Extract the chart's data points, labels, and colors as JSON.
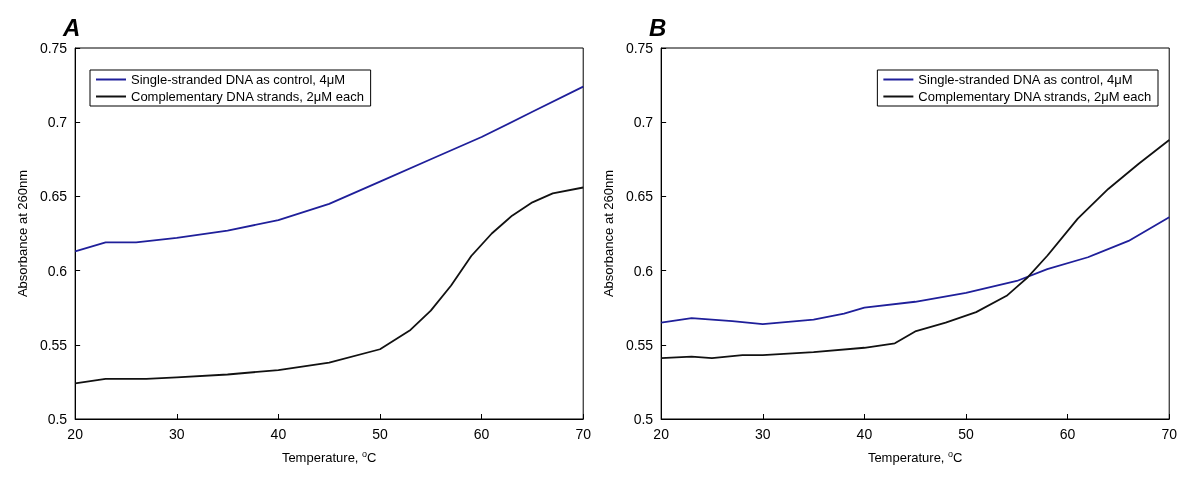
{
  "chart_data": [
    {
      "type": "line",
      "title": "A",
      "xlabel": "Temperature, $^{o}$C",
      "ylabel": "Absorbance at 260nm",
      "xlim": [
        20,
        70
      ],
      "xticks": [
        20,
        30,
        40,
        50,
        60,
        70
      ],
      "ylim": [
        0.5,
        0.75
      ],
      "yticks": [
        0.5,
        0.55,
        0.6,
        0.65,
        0.7,
        0.75
      ],
      "grid": false,
      "legend": "top left",
      "marker": "none",
      "line_style": "solid",
      "series": [
        {
          "name": "Single-stranded DNA as control, 4μM",
          "color": "#1f1f9a",
          "x": [
            20,
            23,
            26,
            30,
            35,
            40,
            45,
            50,
            55,
            60,
            65,
            70
          ],
          "values": [
            0.613,
            0.619,
            0.619,
            0.622,
            0.627,
            0.634,
            0.645,
            0.66,
            0.675,
            0.69,
            0.707,
            0.724
          ]
        },
        {
          "name": "Complementary DNA strands, 2μM each",
          "color": "#111111",
          "x": [
            20,
            23,
            27,
            30,
            35,
            40,
            45,
            50,
            53,
            55,
            57,
            59,
            61,
            63,
            65,
            67,
            70
          ],
          "values": [
            0.524,
            0.527,
            0.527,
            0.528,
            0.53,
            0.533,
            0.538,
            0.547,
            0.56,
            0.573,
            0.59,
            0.61,
            0.625,
            0.637,
            0.646,
            0.652,
            0.656
          ]
        }
      ]
    },
    {
      "type": "line",
      "title": "B",
      "xlabel": "Temperature, $^{o}$C",
      "ylabel": "Absorbance at 260nm",
      "xlim": [
        20,
        70
      ],
      "xticks": [
        20,
        30,
        40,
        50,
        60,
        70
      ],
      "ylim": [
        0.5,
        0.75
      ],
      "yticks": [
        0.5,
        0.55,
        0.6,
        0.65,
        0.7,
        0.75
      ],
      "grid": false,
      "legend": "top right",
      "marker": "none",
      "line_style": "solid",
      "series": [
        {
          "name": "Single-stranded DNA as control, 4μM",
          "color": "#1f1f9a",
          "x": [
            20,
            23,
            27,
            30,
            35,
            38,
            40,
            45,
            50,
            55,
            58,
            62,
            66,
            70
          ],
          "values": [
            0.565,
            0.568,
            0.566,
            0.564,
            0.567,
            0.571,
            0.575,
            0.579,
            0.585,
            0.593,
            0.601,
            0.609,
            0.62,
            0.636
          ]
        },
        {
          "name": "Complementary DNA strands, 2μM each",
          "color": "#111111",
          "x": [
            20,
            23,
            25,
            28,
            30,
            35,
            40,
            43,
            45,
            48,
            51,
            54,
            56,
            58,
            61,
            64,
            67,
            70
          ],
          "values": [
            0.541,
            0.542,
            0.541,
            0.543,
            0.543,
            0.545,
            0.548,
            0.551,
            0.559,
            0.565,
            0.572,
            0.583,
            0.595,
            0.61,
            0.635,
            0.655,
            0.672,
            0.688
          ]
        }
      ]
    }
  ]
}
